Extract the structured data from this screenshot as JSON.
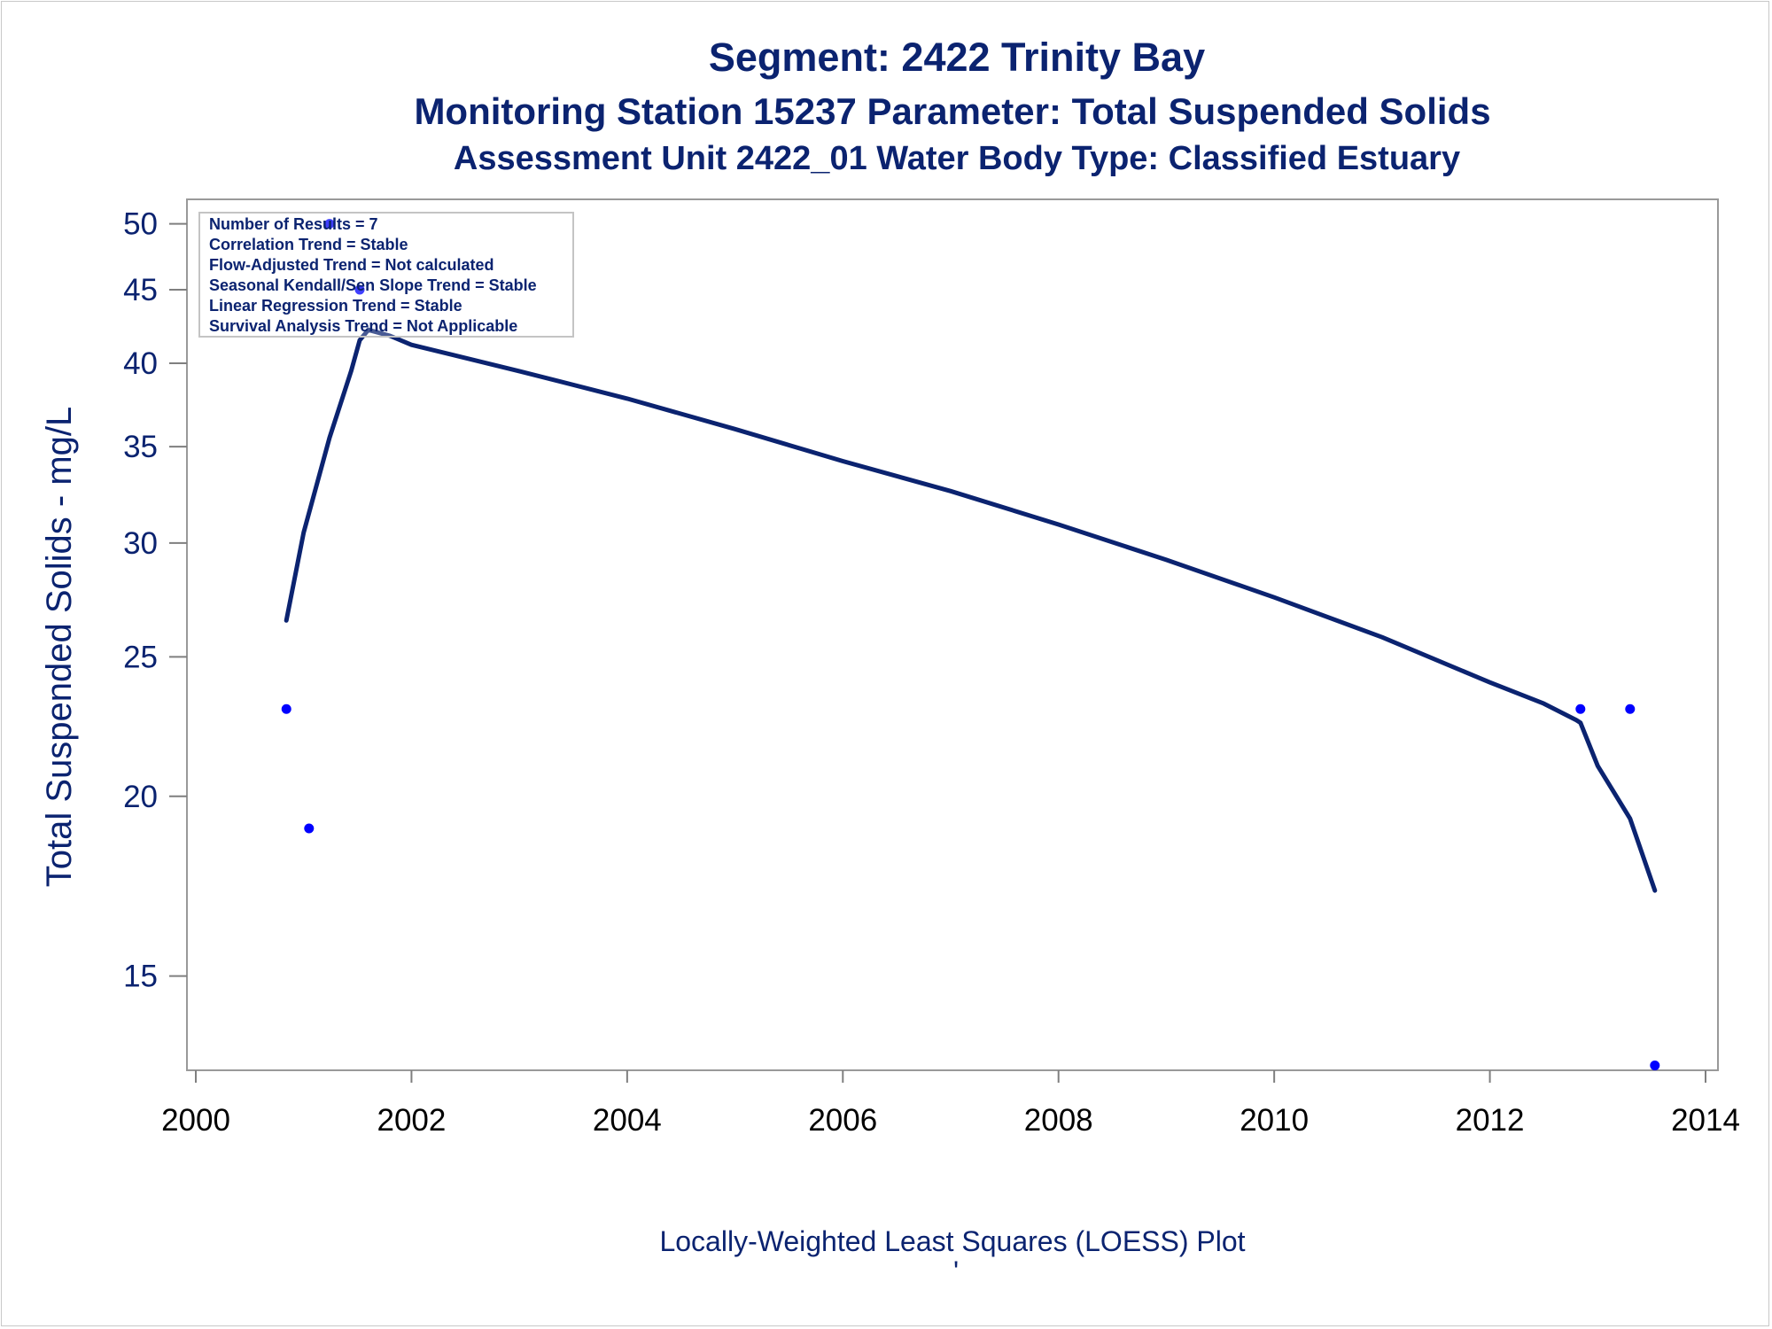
{
  "chart_data": {
    "type": "line",
    "title": "Segment: 2422  Trinity Bay",
    "subtitle": "Monitoring Station 15237 Parameter: Total Suspended Solids",
    "subtitle2": "Assessment Unit 2422_01   Water Body Type: Classified Estuary",
    "xlabel": "",
    "ylabel": "Total Suspended Solids - mg/L",
    "footnote": "Locally-Weighted Least Squares (LOESS) Plot",
    "footnote_mark": "'",
    "y_scale": "log",
    "xlim": [
      2000,
      2014
    ],
    "ylim": [
      12.9,
      52
    ],
    "x_ticks": [
      2000,
      2002,
      2004,
      2006,
      2008,
      2010,
      2012,
      2014
    ],
    "y_ticks": [
      15,
      20,
      25,
      30,
      35,
      40,
      45,
      50
    ],
    "grid": false,
    "inset_box": {
      "position": "top-left",
      "lines": [
        "Number of Results = 7",
        "Correlation Trend = Stable",
        "Flow-Adjusted Trend = Not calculated",
        "Seasonal Kendall/Sen Slope Trend = Stable",
        "Linear Regression Trend = Stable",
        "Survival Analysis Trend = Not Applicable"
      ]
    },
    "series": [
      {
        "type": "scatter",
        "color": "#0000ff",
        "x": [
          2000.84,
          2001.05,
          2001.24,
          2001.52,
          2012.84,
          2013.3,
          2013.53
        ],
        "y": [
          23,
          19,
          50,
          45,
          23,
          23,
          13
        ]
      },
      {
        "type": "line",
        "color": "#0b2370",
        "x": [
          2000.84,
          2001.0,
          2001.24,
          2001.44,
          2001.52,
          2001.6,
          2001.8,
          2002.0,
          2003.0,
          2004.0,
          2005.0,
          2006.0,
          2007.0,
          2008.0,
          2009.0,
          2010.0,
          2011.0,
          2012.0,
          2012.5,
          2012.8,
          2012.84,
          2013.0,
          2013.3,
          2013.53
        ],
        "y": [
          26.5,
          30.5,
          35.5,
          39.5,
          41.5,
          42.2,
          41.8,
          41.2,
          39.5,
          37.8,
          36.0,
          34.2,
          32.6,
          30.9,
          29.2,
          27.5,
          25.8,
          24.0,
          23.2,
          22.6,
          22.5,
          21.0,
          19.3,
          17.2
        ]
      }
    ]
  }
}
